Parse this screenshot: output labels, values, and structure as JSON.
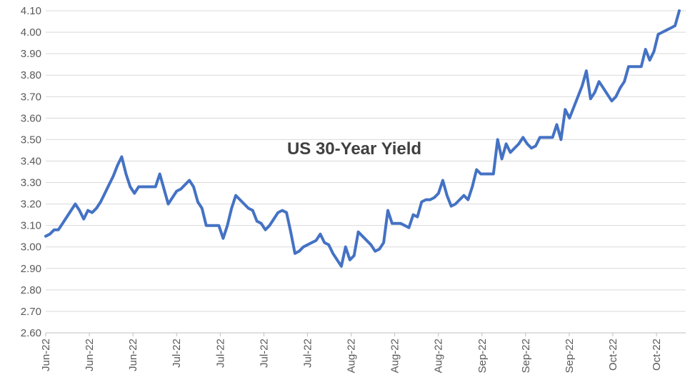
{
  "chart_data": {
    "type": "line",
    "title": "US 30-Year Yield",
    "xlabel": "",
    "ylabel": "",
    "ylim": [
      2.6,
      4.1
    ],
    "yticks": [
      "2.60",
      "2.70",
      "2.80",
      "2.90",
      "3.00",
      "3.10",
      "3.20",
      "3.30",
      "3.40",
      "3.50",
      "3.60",
      "3.70",
      "3.80",
      "3.90",
      "4.00",
      "4.10"
    ],
    "xticks": [
      "Jun-22",
      "Jun-22",
      "Jun-22",
      "Jul-22",
      "Jul-22",
      "Jul-22",
      "Jul-22",
      "Aug-22",
      "Aug-22",
      "Aug-22",
      "Sep-22",
      "Sep-22",
      "Sep-22",
      "Oct-22",
      "Oct-22"
    ],
    "grid": true,
    "color": "#4472c4",
    "series": [
      {
        "values": [
          3.05,
          3.06,
          3.08,
          3.08,
          3.11,
          3.14,
          3.17,
          3.2,
          3.17,
          3.13,
          3.17,
          3.16,
          3.18,
          3.21,
          3.25,
          3.29,
          3.33,
          3.38,
          3.42,
          3.34,
          3.28,
          3.25,
          3.28,
          3.28,
          3.28,
          3.28,
          3.28,
          3.34,
          3.27,
          3.2,
          3.23,
          3.26,
          3.27,
          3.29,
          3.31,
          3.28,
          3.21,
          3.18,
          3.1,
          3.1,
          3.1,
          3.1,
          3.04,
          3.1,
          3.18,
          3.24,
          3.22,
          3.2,
          3.18,
          3.17,
          3.12,
          3.11,
          3.08,
          3.1,
          3.13,
          3.16,
          3.17,
          3.16,
          3.07,
          2.97,
          2.98,
          3.0,
          3.01,
          3.02,
          3.03,
          3.06,
          3.02,
          3.01,
          2.97,
          2.94,
          2.91,
          3.0,
          2.94,
          2.96,
          3.07,
          3.05,
          3.03,
          3.01,
          2.98,
          2.99,
          3.02,
          3.17,
          3.11,
          3.11,
          3.11,
          3.1,
          3.09,
          3.15,
          3.14,
          3.21,
          3.22,
          3.22,
          3.23,
          3.25,
          3.31,
          3.24,
          3.19,
          3.2,
          3.22,
          3.24,
          3.22,
          3.28,
          3.36,
          3.34,
          3.34,
          3.34,
          3.34,
          3.5,
          3.41,
          3.48,
          3.44,
          3.46,
          3.48,
          3.51,
          3.48,
          3.46,
          3.47,
          3.51,
          3.51,
          3.51,
          3.51,
          3.57,
          3.5,
          3.64,
          3.6,
          3.65,
          3.7,
          3.75,
          3.82,
          3.69,
          3.72,
          3.77,
          3.74,
          3.71,
          3.68,
          3.7,
          3.74,
          3.77,
          3.84,
          3.84,
          3.84,
          3.84,
          3.92,
          3.87,
          3.91,
          3.99,
          4.0,
          4.01,
          4.02,
          4.03,
          4.1
        ]
      }
    ]
  }
}
